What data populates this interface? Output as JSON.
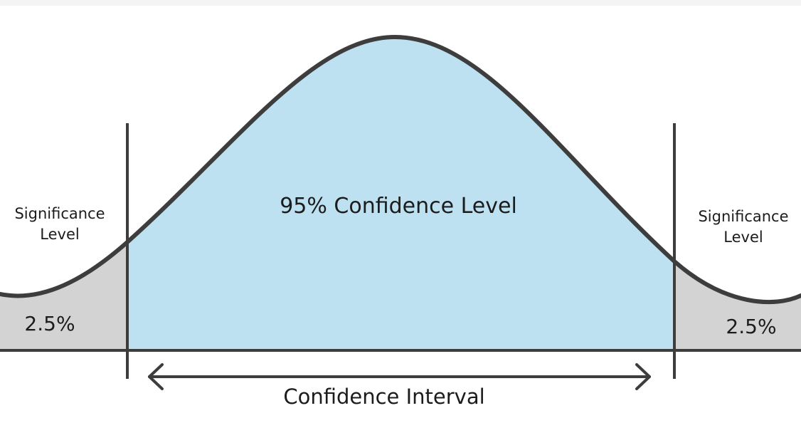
{
  "diagram": {
    "center_label": "95% Confidence Level",
    "left_tail": {
      "title_line1": "Significance",
      "title_line2": "Level",
      "value": "2.5%"
    },
    "right_tail": {
      "title_line1": "Significance",
      "title_line2": "Level",
      "value": "2.5%"
    },
    "interval_label": "Confidence Interval",
    "colors": {
      "curve": "#3d3d3d",
      "center_fill": "#bde1f1",
      "tail_fill": "#d3d3d3",
      "text": "#1c1c1c"
    }
  }
}
